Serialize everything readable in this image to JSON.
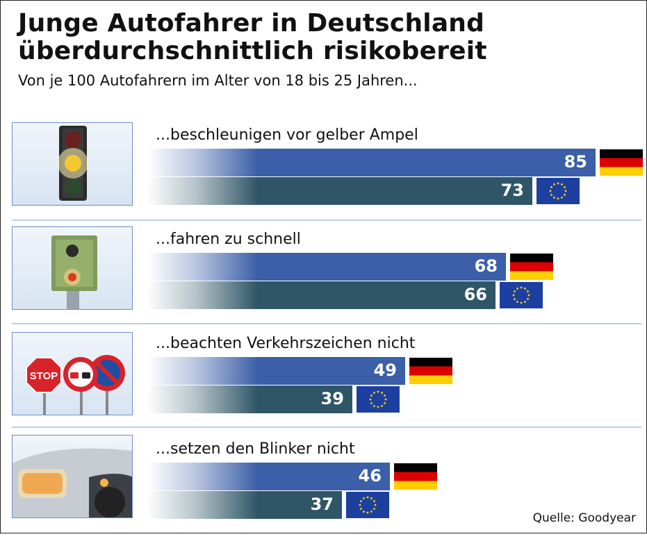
{
  "title_line1": "Junge Autofahrer in Deutschland",
  "title_line2": "überdurchschnittlich risikobereit",
  "subtitle": "Von je 100 Autofahrern im Alter von 18 bis 25 Jahren...",
  "source": "Quelle: Goodyear",
  "colors": {
    "germany_bar": "#3b5fa8",
    "eu_bar": "#2f5666"
  },
  "chart_data": {
    "type": "bar",
    "orientation": "horizontal",
    "categories": [
      "...beschleunigen vor gelber Ampel",
      "...fahren zu schnell",
      "...beachten Verkehrszeichen nicht",
      "...setzen den Blinker nicht"
    ],
    "series": [
      {
        "legend_icon": "flag-germany",
        "values": [
          85,
          68,
          49,
          46
        ]
      },
      {
        "legend_icon": "flag-eu",
        "values": [
          73,
          66,
          39,
          37
        ]
      }
    ],
    "xlim": [
      0,
      100
    ],
    "grid": false,
    "stop_sign_text": "STOP"
  }
}
